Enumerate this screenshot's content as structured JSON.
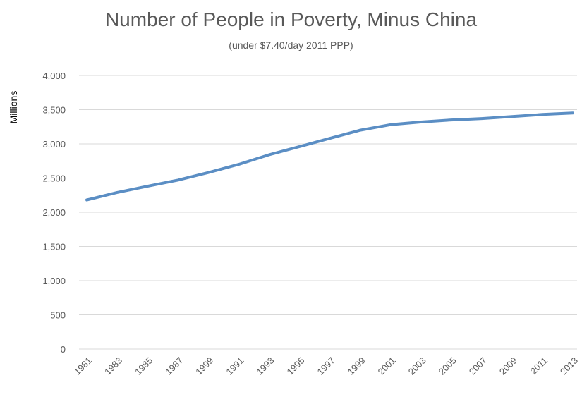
{
  "chart_data": {
    "type": "line",
    "title": "Number of People in Poverty, Minus China",
    "subtitle": "(under $7.40/day 2011 PPP)",
    "ylabel": "Millions",
    "xlabel": "",
    "ylim": [
      0,
      4000
    ],
    "y_ticks": [
      "0",
      "500",
      "1,000",
      "1,500",
      "2,000",
      "2,500",
      "3,000",
      "3,500",
      "4,000"
    ],
    "categories": [
      "1981",
      "1983",
      "1985",
      "1987",
      "1999",
      "1991",
      "1993",
      "1995",
      "1997",
      "1999",
      "2001",
      "2003",
      "2005",
      "2007",
      "2009",
      "2011",
      "2013"
    ],
    "series": [
      {
        "values": [
          2180,
          2290,
          2380,
          2470,
          2580,
          2700,
          2840,
          2960,
          3080,
          3200,
          3280,
          3320,
          3350,
          3370,
          3400,
          3430,
          3450
        ]
      }
    ],
    "grid": true,
    "legend": "none",
    "line_color": "#5b8ec4"
  }
}
